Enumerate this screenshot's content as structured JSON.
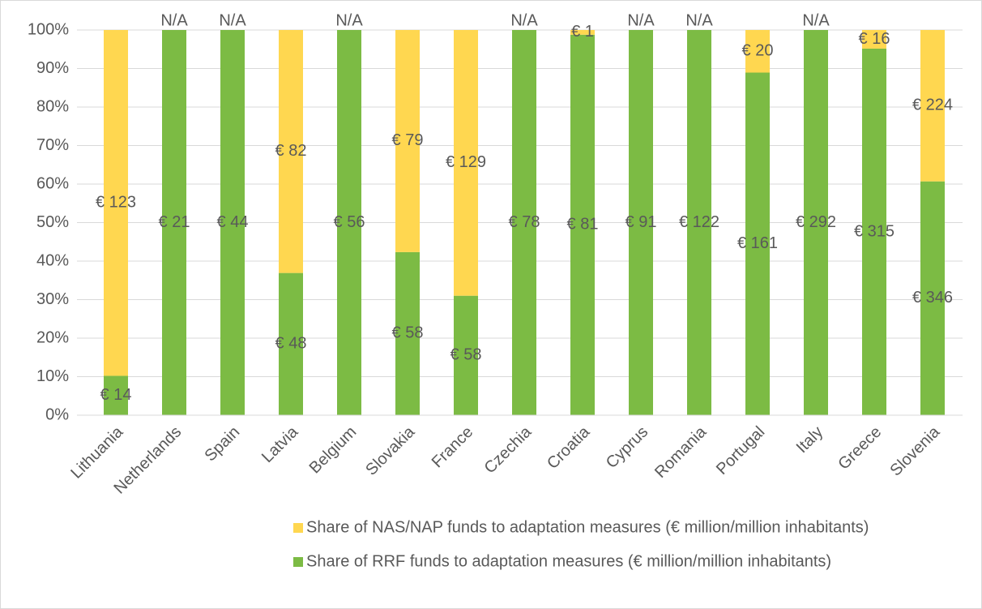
{
  "chart_data": {
    "type": "bar",
    "stacking": "percent",
    "categories": [
      "Lithuania",
      "Netherlands",
      "Spain",
      "Latvia",
      "Belgium",
      "Slovakia",
      "France",
      "Czechia",
      "Croatia",
      "Cyprus",
      "Romania",
      "Portugal",
      "Italy",
      "Greece",
      "Slovenia"
    ],
    "series": [
      {
        "name": "Share of NAS/NAP funds to adaptation measures (€ million/million inhabitants)",
        "color": "#ffd750",
        "values": [
          123,
          null,
          null,
          82,
          null,
          79,
          129,
          null,
          1,
          null,
          null,
          20,
          null,
          16,
          224
        ],
        "value_labels": [
          "€ 123",
          "N/A",
          "N/A",
          "€ 82",
          "N/A",
          "€ 79",
          "€ 129",
          "N/A",
          "€ 1",
          "N/A",
          "N/A",
          "€ 20",
          "N/A",
          "€ 16",
          "€ 224"
        ]
      },
      {
        "name": "Share of RRF funds to adaptation measures (€ million/million inhabitants)",
        "color": "#7cbb44",
        "values": [
          14,
          21,
          44,
          48,
          56,
          58,
          58,
          78,
          81,
          91,
          122,
          161,
          292,
          315,
          346
        ],
        "value_labels": [
          "€ 14",
          "€ 21",
          "€ 44",
          "€ 48",
          "€ 56",
          "€ 58",
          "€ 58",
          "€ 78",
          "€ 81",
          "€ 91",
          "€ 122",
          "€ 161",
          "€ 292",
          "€ 315",
          "€ 346"
        ]
      }
    ],
    "ylim": [
      0,
      100
    ],
    "yticks": [
      {
        "value": 0,
        "label": "0%"
      },
      {
        "value": 10,
        "label": "10%"
      },
      {
        "value": 20,
        "label": "20%"
      },
      {
        "value": 30,
        "label": "30%"
      },
      {
        "value": 40,
        "label": "40%"
      },
      {
        "value": 50,
        "label": "50%"
      },
      {
        "value": 60,
        "label": "60%"
      },
      {
        "value": 70,
        "label": "70%"
      },
      {
        "value": 80,
        "label": "80%"
      },
      {
        "value": 90,
        "label": "90%"
      },
      {
        "value": 100,
        "label": "100%"
      }
    ],
    "grid": true,
    "legend": "bottom"
  }
}
